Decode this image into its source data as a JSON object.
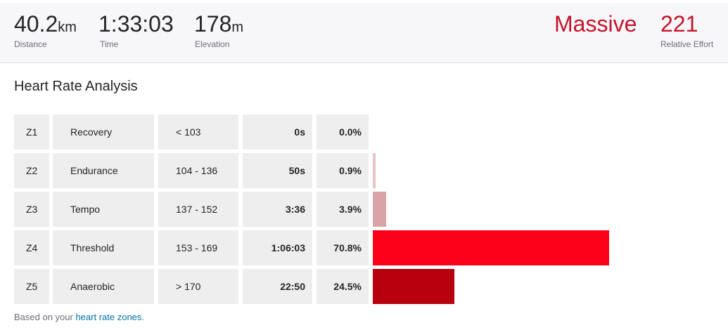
{
  "header": {
    "stats": [
      {
        "value": 40.2,
        "unit": "km",
        "label": "Distance"
      },
      {
        "value": "1:33:03",
        "label": "Time"
      },
      {
        "value": 178,
        "unit": "m",
        "label": "Elevation"
      }
    ],
    "effort": {
      "level": "Massive",
      "value": 221,
      "label": "Relative Effort"
    }
  },
  "title": "Heart Rate Analysis",
  "zones": [
    {
      "zone": "Z1",
      "name": "Recovery",
      "range": "< 103",
      "time": "0s",
      "percent": {
        "value": 0.0,
        "label": "0.0%"
      },
      "color": "#f2d9dc"
    },
    {
      "zone": "Z2",
      "name": "Endurance",
      "range": "104 - 136",
      "time": "50s",
      "percent": {
        "value": 0.9,
        "label": "0.9%"
      },
      "color": "#e8c4c8"
    },
    {
      "zone": "Z3",
      "name": "Tempo",
      "range": "137 - 152",
      "time": "3:36",
      "percent": {
        "value": 3.9,
        "label": "3.9%"
      },
      "color": "#d9a4a8"
    },
    {
      "zone": "Z4",
      "name": "Threshold",
      "range": "153 - 169",
      "time": "1:06:03",
      "percent": {
        "value": 70.8,
        "label": "70.8%"
      },
      "color": "#fc0019"
    },
    {
      "zone": "Z5",
      "name": "Anaerobic",
      "range": "> 170",
      "time": "22:50",
      "percent": {
        "value": 24.5,
        "label": "24.5%"
      },
      "color": "#b8000f"
    }
  ],
  "footer": {
    "text": "Based on your ",
    "link": "heart rate zones",
    "end": "."
  }
}
